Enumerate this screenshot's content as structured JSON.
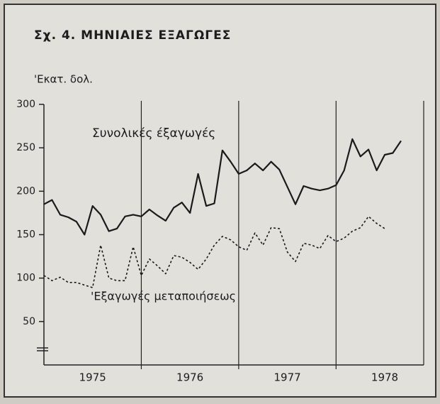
{
  "chart_data": {
    "type": "line",
    "title": "Σχ. 4.  ΜΗΝΙΑΙΕΣ ΕΞΑΓΩΓΕΣ",
    "y_axis_label": "'Εκατ. δολ.",
    "x": [
      1975,
      1975.083,
      1975.167,
      1975.25,
      1975.333,
      1975.417,
      1975.5,
      1975.583,
      1975.667,
      1975.75,
      1975.833,
      1975.917,
      1976,
      1976.083,
      1976.167,
      1976.25,
      1976.333,
      1976.417,
      1976.5,
      1976.583,
      1976.667,
      1976.75,
      1976.833,
      1976.917,
      1977,
      1977.083,
      1977.167,
      1977.25,
      1977.333,
      1977.417,
      1977.5,
      1977.583,
      1977.667,
      1977.75,
      1977.833,
      1977.917,
      1978,
      1978.083,
      1978.167,
      1978.25,
      1978.333,
      1978.417,
      1978.5,
      1978.583,
      1978.667
    ],
    "series": [
      {
        "name": "Συνολικές έξαγωγές",
        "color": "#1a1a1a",
        "dash": false,
        "values": [
          185,
          190,
          173,
          170,
          165,
          150,
          183,
          173,
          154,
          157,
          171,
          173,
          171,
          179,
          172,
          166,
          181,
          187,
          175,
          220,
          183,
          186,
          247,
          234,
          220,
          224,
          232,
          224,
          234,
          225,
          205,
          185,
          206,
          203,
          201,
          203,
          207,
          224,
          260,
          240,
          248,
          224,
          242,
          244,
          258
        ]
      },
      {
        "name": "'Εξαγωγές μεταποιήσεως",
        "color": "#1a1a1a",
        "dash": true,
        "values": [
          103,
          97,
          101,
          95,
          95,
          92,
          89,
          138,
          100,
          97,
          97,
          136,
          103,
          122,
          114,
          105,
          126,
          124,
          118,
          110,
          122,
          138,
          148,
          144,
          136,
          132,
          152,
          138,
          158,
          157,
          130,
          119,
          140,
          138,
          134,
          149,
          142,
          146,
          154,
          158,
          171,
          163,
          157,
          null,
          null
        ]
      }
    ],
    "xlim": [
      1975,
      1978.9
    ],
    "xticks": [
      {
        "value": 1975.5,
        "label": "1975"
      },
      {
        "value": 1976.5,
        "label": "1976"
      },
      {
        "value": 1977.5,
        "label": "1977"
      },
      {
        "value": 1978.5,
        "label": "1978"
      }
    ],
    "year_lines": [
      1976,
      1977,
      1978
    ],
    "ylim": [
      0,
      300
    ],
    "yticks": [
      50,
      100,
      150,
      200,
      250,
      300
    ]
  }
}
